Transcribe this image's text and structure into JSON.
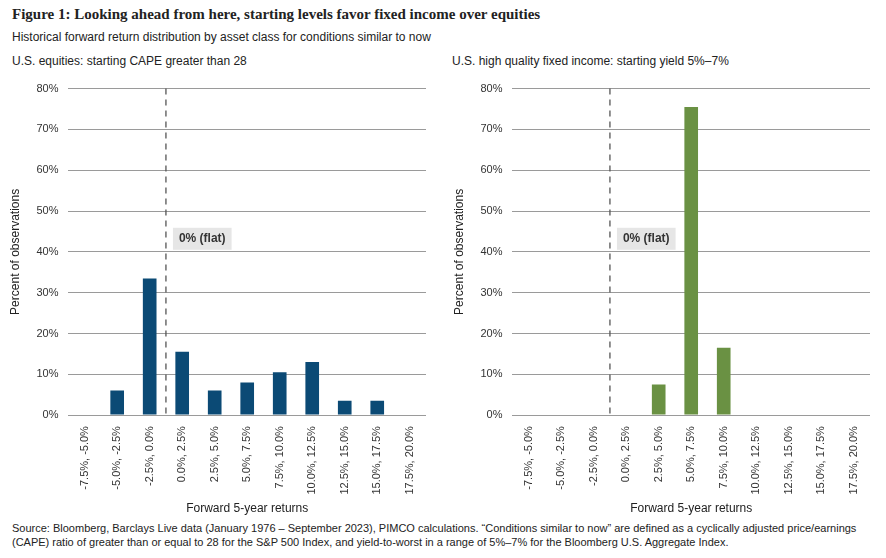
{
  "title": "Figure 1: Looking ahead from here, starting levels favor fixed income over equities",
  "subtitle": "Historical forward return distribution by asset class for conditions similar to now",
  "source": "Source: Bloomberg, Barclays Live data (January 1976 – September 2023), PIMCO calculations. “Conditions similar to now” are defined as a cyclically adjusted price/earnings (CAPE) ratio of greater than or equal to 28 for the S&P 500 Index, and yield-to-worst in a range of 5%–7% for the Bloomberg U.S. Aggregate Index.",
  "chart_data": [
    {
      "type": "bar",
      "title": "U.S. equities: starting CAPE greater than 28",
      "xlabel": "Forward 5-year returns",
      "ylabel": "Percent of observations",
      "categories": [
        "-7.5%, -5.0%",
        "-5.0%, -2.5%",
        "-2.5%, 0.0%",
        "0.0%, 2.5%",
        "2.5%, 5.0%",
        "5.0%, 7.5%",
        "7.5%, 10.0%",
        "10.0%, 12.5%",
        "12.5%, 15.0%",
        "15.0%, 17.5%",
        "17.5%, 20.0%"
      ],
      "bins": [
        -7.5,
        -5.0,
        -2.5,
        0.0,
        2.5,
        5.0,
        7.5,
        10.0,
        12.5,
        15.0,
        17.5,
        20.0
      ],
      "values": [
        0,
        6,
        33.5,
        15.5,
        6,
        8,
        10.5,
        13,
        3.5,
        3.5,
        0
      ],
      "color": "#0b4a75",
      "ylim": [
        0,
        80
      ],
      "yticks": [
        {
          "value": 0,
          "label": "0%"
        },
        {
          "value": 10,
          "label": "10%"
        },
        {
          "value": 20,
          "label": "20%"
        },
        {
          "value": 30,
          "label": "30%"
        },
        {
          "value": 40,
          "label": "40%"
        },
        {
          "value": 50,
          "label": "50%"
        },
        {
          "value": 60,
          "label": "60%"
        },
        {
          "value": 70,
          "label": "70%"
        },
        {
          "value": 80,
          "label": "80%"
        }
      ],
      "grid": true,
      "annotations": [
        {
          "text": "0% (flat)",
          "x": 0,
          "line_style": "dashed"
        }
      ]
    },
    {
      "type": "bar",
      "title": "U.S. high quality fixed income: starting yield 5%–7%",
      "xlabel": "Forward 5-year returns",
      "ylabel": "Percent of observations",
      "categories": [
        "-7.5%, -5.0%",
        "-5.0%, -2.5%",
        "-2.5%, 0.0%",
        "0.0%, 2.5%",
        "2.5%, 5.0%",
        "5.0%, 7.5%",
        "7.5%, 10.0%",
        "10.0%, 12.5%",
        "12.5%, 15.0%",
        "15.0%, 17.5%",
        "17.5%, 20.0%"
      ],
      "bins": [
        -7.5,
        -5.0,
        -2.5,
        0.0,
        2.5,
        5.0,
        7.5,
        10.0,
        12.5,
        15.0,
        17.5,
        20.0
      ],
      "values": [
        0,
        0,
        0,
        0,
        7.5,
        75.5,
        16.5,
        0,
        0,
        0,
        0
      ],
      "color": "#6a9143",
      "ylim": [
        0,
        80
      ],
      "yticks": [
        {
          "value": 0,
          "label": "0%"
        },
        {
          "value": 10,
          "label": "10%"
        },
        {
          "value": 20,
          "label": "20%"
        },
        {
          "value": 30,
          "label": "30%"
        },
        {
          "value": 40,
          "label": "40%"
        },
        {
          "value": 50,
          "label": "50%"
        },
        {
          "value": 60,
          "label": "60%"
        },
        {
          "value": 70,
          "label": "70%"
        },
        {
          "value": 80,
          "label": "80%"
        }
      ],
      "grid": true,
      "annotations": [
        {
          "text": "0% (flat)",
          "x": 0,
          "line_style": "dashed"
        }
      ]
    }
  ]
}
